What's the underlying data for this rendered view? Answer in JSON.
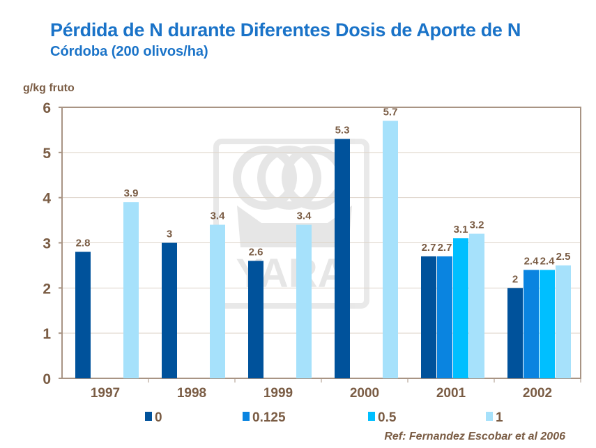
{
  "header": {
    "title": "Pérdida de N durante Diferentes Dosis de Aporte de N",
    "subtitle": "Córdoba (200 olivos/ha)"
  },
  "reference": "Ref: Fernandez Escobar et al 2006",
  "watermark": "YARA",
  "chart_data": {
    "type": "bar",
    "title": "",
    "ylabel": "g/kg fruto",
    "xlabel": "",
    "ylim": [
      0,
      6
    ],
    "yticks": [
      0,
      1,
      2,
      3,
      4,
      5,
      6
    ],
    "grid": true,
    "legend_position": "bottom",
    "categories": [
      "1997",
      "1998",
      "1999",
      "2000",
      "2001",
      "2002"
    ],
    "series": [
      {
        "name": "0",
        "color": "#00529b",
        "values": [
          2.8,
          3,
          2.6,
          5.3,
          2.7,
          2
        ]
      },
      {
        "name": "0.125",
        "color": "#0a84e0",
        "values": [
          null,
          null,
          null,
          null,
          2.7,
          2.4
        ]
      },
      {
        "name": "0.5",
        "color": "#00bfff",
        "values": [
          null,
          null,
          null,
          null,
          3.1,
          2.4
        ]
      },
      {
        "name": "1",
        "color": "#a6e1fb",
        "values": [
          3.9,
          3.4,
          3.4,
          5.7,
          3.2,
          2.5
        ]
      }
    ]
  }
}
